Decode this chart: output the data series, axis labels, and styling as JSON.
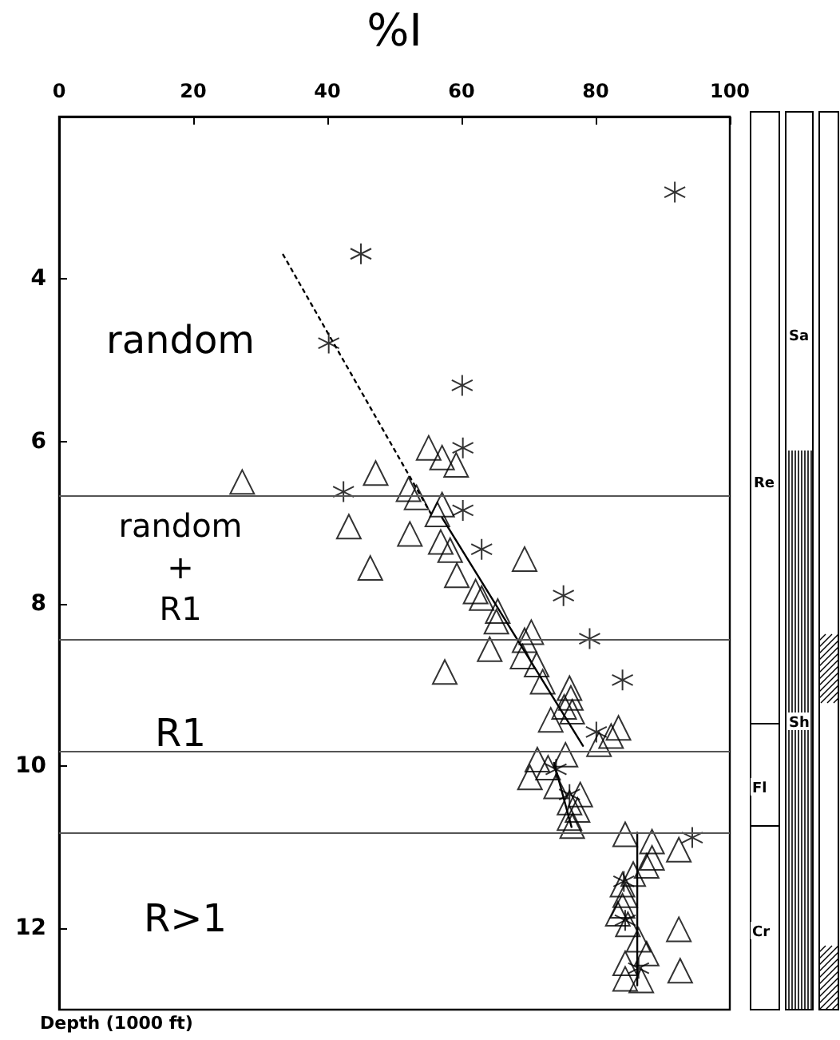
{
  "chart_data": {
    "type": "scatter",
    "xlabel": "%I",
    "ylabel": "Depth (1000 ft)",
    "xlim": [
      0,
      100
    ],
    "xticks": [
      0,
      20,
      40,
      60,
      80,
      100
    ],
    "ylim": [
      13,
      2
    ],
    "yticks": [
      4,
      6,
      8,
      10,
      12
    ],
    "grid": false,
    "series": [
      {
        "marker": "cross",
        "color": "#000000",
        "x": [
          91.8,
          45.0,
          40.2,
          60.1,
          60.2,
          42.4,
          60.2,
          63.0,
          75.2,
          79.1,
          84.0,
          80.1,
          74.1,
          76.1,
          94.4,
          84.2,
          84.4,
          86.4
        ],
        "values": [
          2.93,
          3.69,
          4.79,
          5.31,
          6.08,
          6.62,
          6.85,
          7.33,
          7.9,
          8.43,
          8.94,
          9.58,
          10.04,
          10.35,
          10.88,
          11.42,
          11.9,
          12.49
        ]
      },
      {
        "marker": "triangle",
        "color": "#000000",
        "x": [
          27.3,
          47.2,
          55.1,
          57.1,
          59.2,
          52.1,
          53.3,
          57.1,
          56.4,
          43.2,
          52.3,
          56.9,
          58.3,
          46.4,
          69.4,
          59.3,
          62.1,
          63.0,
          65.4,
          65.2,
          70.4,
          69.4,
          64.2,
          69.1,
          71.2,
          57.5,
          72.1,
          76.1,
          76.3,
          75.3,
          76.5,
          73.3,
          83.4,
          82.3,
          80.5,
          75.5,
          71.3,
          72.9,
          70.2,
          74.1,
          77.7,
          76.1,
          77.3,
          76.1,
          76.5,
          84.4,
          88.4,
          92.4,
          88.4,
          87.6,
          85.6,
          84.0,
          84.4,
          84.0,
          83.3,
          84.8,
          92.4,
          86.4,
          87.6,
          84.4,
          92.6,
          84.4,
          86.8
        ],
        "values": [
          6.5,
          6.39,
          6.08,
          6.2,
          6.29,
          6.59,
          6.69,
          6.78,
          6.9,
          7.05,
          7.14,
          7.24,
          7.34,
          7.56,
          7.45,
          7.65,
          7.85,
          7.93,
          8.09,
          8.22,
          8.35,
          8.45,
          8.56,
          8.65,
          8.75,
          8.84,
          8.96,
          9.04,
          9.16,
          9.27,
          9.33,
          9.43,
          9.53,
          9.63,
          9.73,
          9.86,
          9.92,
          10.02,
          10.14,
          10.25,
          10.35,
          10.45,
          10.54,
          10.64,
          10.74,
          10.84,
          10.93,
          11.03,
          11.13,
          11.23,
          11.33,
          11.46,
          11.59,
          11.72,
          11.82,
          11.95,
          12.01,
          12.14,
          12.31,
          12.43,
          12.52,
          12.62,
          12.64
        ]
      },
      {
        "type": "line",
        "marker": "none",
        "line_style": "dotted",
        "color": "#000000",
        "x": [
          33.4,
          55.5
        ],
        "values": [
          3.7,
          6.9
        ]
      },
      {
        "type": "line",
        "marker": "none",
        "line_style": "solid",
        "color": "#000000",
        "x": [
          57.1,
          78.1
        ],
        "values": [
          6.94,
          9.75
        ]
      },
      {
        "type": "line",
        "marker": "none",
        "line_style": "solid",
        "color": "#000000",
        "x": [
          73.8,
          76.4
        ],
        "values": [
          9.96,
          10.75
        ]
      },
      {
        "type": "line",
        "marker": "none",
        "line_style": "solid",
        "color": "#000000",
        "x": [
          86.2,
          86.2
        ],
        "values": [
          10.82,
          12.7
        ]
      }
    ],
    "ref_lines": [
      {
        "axis": "y",
        "value": 6.67,
        "color": "#555555"
      },
      {
        "axis": "y",
        "value": 8.43,
        "color": "#555555"
      },
      {
        "axis": "y",
        "value": 9.82,
        "color": "#555555"
      },
      {
        "axis": "y",
        "value": 10.82,
        "color": "#555555"
      }
    ],
    "annotations": [
      "random",
      "random\n+\nR1",
      "R1",
      "R>1",
      "Sa",
      "Re",
      "Sh",
      "Fl",
      "Cr"
    ]
  }
}
